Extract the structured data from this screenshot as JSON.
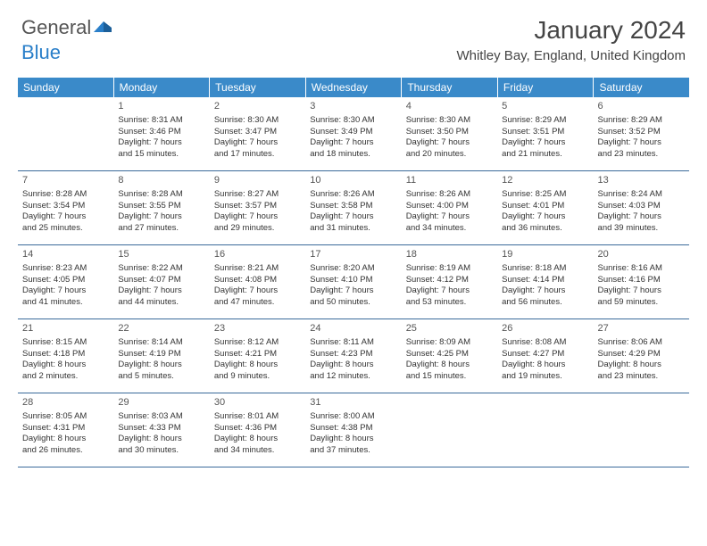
{
  "logo": {
    "general": "General",
    "blue": "Blue"
  },
  "title": "January 2024",
  "location": "Whitley Bay, England, United Kingdom",
  "colors": {
    "header_bg": "#3a8ac9",
    "header_text": "#ffffff",
    "row_border": "#3a6a9a",
    "text": "#333333",
    "logo_gray": "#555555",
    "logo_blue": "#2a7fc9",
    "background": "#ffffff"
  },
  "typography": {
    "title_fontsize": 28,
    "location_fontsize": 15,
    "header_fontsize": 12,
    "cell_fontsize": 9.5,
    "daynum_fontsize": 11
  },
  "day_names": [
    "Sunday",
    "Monday",
    "Tuesday",
    "Wednesday",
    "Thursday",
    "Friday",
    "Saturday"
  ],
  "weeks": [
    [
      null,
      {
        "n": "1",
        "sr": "Sunrise: 8:31 AM",
        "ss": "Sunset: 3:46 PM",
        "d1": "Daylight: 7 hours",
        "d2": "and 15 minutes."
      },
      {
        "n": "2",
        "sr": "Sunrise: 8:30 AM",
        "ss": "Sunset: 3:47 PM",
        "d1": "Daylight: 7 hours",
        "d2": "and 17 minutes."
      },
      {
        "n": "3",
        "sr": "Sunrise: 8:30 AM",
        "ss": "Sunset: 3:49 PM",
        "d1": "Daylight: 7 hours",
        "d2": "and 18 minutes."
      },
      {
        "n": "4",
        "sr": "Sunrise: 8:30 AM",
        "ss": "Sunset: 3:50 PM",
        "d1": "Daylight: 7 hours",
        "d2": "and 20 minutes."
      },
      {
        "n": "5",
        "sr": "Sunrise: 8:29 AM",
        "ss": "Sunset: 3:51 PM",
        "d1": "Daylight: 7 hours",
        "d2": "and 21 minutes."
      },
      {
        "n": "6",
        "sr": "Sunrise: 8:29 AM",
        "ss": "Sunset: 3:52 PM",
        "d1": "Daylight: 7 hours",
        "d2": "and 23 minutes."
      }
    ],
    [
      {
        "n": "7",
        "sr": "Sunrise: 8:28 AM",
        "ss": "Sunset: 3:54 PM",
        "d1": "Daylight: 7 hours",
        "d2": "and 25 minutes."
      },
      {
        "n": "8",
        "sr": "Sunrise: 8:28 AM",
        "ss": "Sunset: 3:55 PM",
        "d1": "Daylight: 7 hours",
        "d2": "and 27 minutes."
      },
      {
        "n": "9",
        "sr": "Sunrise: 8:27 AM",
        "ss": "Sunset: 3:57 PM",
        "d1": "Daylight: 7 hours",
        "d2": "and 29 minutes."
      },
      {
        "n": "10",
        "sr": "Sunrise: 8:26 AM",
        "ss": "Sunset: 3:58 PM",
        "d1": "Daylight: 7 hours",
        "d2": "and 31 minutes."
      },
      {
        "n": "11",
        "sr": "Sunrise: 8:26 AM",
        "ss": "Sunset: 4:00 PM",
        "d1": "Daylight: 7 hours",
        "d2": "and 34 minutes."
      },
      {
        "n": "12",
        "sr": "Sunrise: 8:25 AM",
        "ss": "Sunset: 4:01 PM",
        "d1": "Daylight: 7 hours",
        "d2": "and 36 minutes."
      },
      {
        "n": "13",
        "sr": "Sunrise: 8:24 AM",
        "ss": "Sunset: 4:03 PM",
        "d1": "Daylight: 7 hours",
        "d2": "and 39 minutes."
      }
    ],
    [
      {
        "n": "14",
        "sr": "Sunrise: 8:23 AM",
        "ss": "Sunset: 4:05 PM",
        "d1": "Daylight: 7 hours",
        "d2": "and 41 minutes."
      },
      {
        "n": "15",
        "sr": "Sunrise: 8:22 AM",
        "ss": "Sunset: 4:07 PM",
        "d1": "Daylight: 7 hours",
        "d2": "and 44 minutes."
      },
      {
        "n": "16",
        "sr": "Sunrise: 8:21 AM",
        "ss": "Sunset: 4:08 PM",
        "d1": "Daylight: 7 hours",
        "d2": "and 47 minutes."
      },
      {
        "n": "17",
        "sr": "Sunrise: 8:20 AM",
        "ss": "Sunset: 4:10 PM",
        "d1": "Daylight: 7 hours",
        "d2": "and 50 minutes."
      },
      {
        "n": "18",
        "sr": "Sunrise: 8:19 AM",
        "ss": "Sunset: 4:12 PM",
        "d1": "Daylight: 7 hours",
        "d2": "and 53 minutes."
      },
      {
        "n": "19",
        "sr": "Sunrise: 8:18 AM",
        "ss": "Sunset: 4:14 PM",
        "d1": "Daylight: 7 hours",
        "d2": "and 56 minutes."
      },
      {
        "n": "20",
        "sr": "Sunrise: 8:16 AM",
        "ss": "Sunset: 4:16 PM",
        "d1": "Daylight: 7 hours",
        "d2": "and 59 minutes."
      }
    ],
    [
      {
        "n": "21",
        "sr": "Sunrise: 8:15 AM",
        "ss": "Sunset: 4:18 PM",
        "d1": "Daylight: 8 hours",
        "d2": "and 2 minutes."
      },
      {
        "n": "22",
        "sr": "Sunrise: 8:14 AM",
        "ss": "Sunset: 4:19 PM",
        "d1": "Daylight: 8 hours",
        "d2": "and 5 minutes."
      },
      {
        "n": "23",
        "sr": "Sunrise: 8:12 AM",
        "ss": "Sunset: 4:21 PM",
        "d1": "Daylight: 8 hours",
        "d2": "and 9 minutes."
      },
      {
        "n": "24",
        "sr": "Sunrise: 8:11 AM",
        "ss": "Sunset: 4:23 PM",
        "d1": "Daylight: 8 hours",
        "d2": "and 12 minutes."
      },
      {
        "n": "25",
        "sr": "Sunrise: 8:09 AM",
        "ss": "Sunset: 4:25 PM",
        "d1": "Daylight: 8 hours",
        "d2": "and 15 minutes."
      },
      {
        "n": "26",
        "sr": "Sunrise: 8:08 AM",
        "ss": "Sunset: 4:27 PM",
        "d1": "Daylight: 8 hours",
        "d2": "and 19 minutes."
      },
      {
        "n": "27",
        "sr": "Sunrise: 8:06 AM",
        "ss": "Sunset: 4:29 PM",
        "d1": "Daylight: 8 hours",
        "d2": "and 23 minutes."
      }
    ],
    [
      {
        "n": "28",
        "sr": "Sunrise: 8:05 AM",
        "ss": "Sunset: 4:31 PM",
        "d1": "Daylight: 8 hours",
        "d2": "and 26 minutes."
      },
      {
        "n": "29",
        "sr": "Sunrise: 8:03 AM",
        "ss": "Sunset: 4:33 PM",
        "d1": "Daylight: 8 hours",
        "d2": "and 30 minutes."
      },
      {
        "n": "30",
        "sr": "Sunrise: 8:01 AM",
        "ss": "Sunset: 4:36 PM",
        "d1": "Daylight: 8 hours",
        "d2": "and 34 minutes."
      },
      {
        "n": "31",
        "sr": "Sunrise: 8:00 AM",
        "ss": "Sunset: 4:38 PM",
        "d1": "Daylight: 8 hours",
        "d2": "and 37 minutes."
      },
      null,
      null,
      null
    ]
  ]
}
